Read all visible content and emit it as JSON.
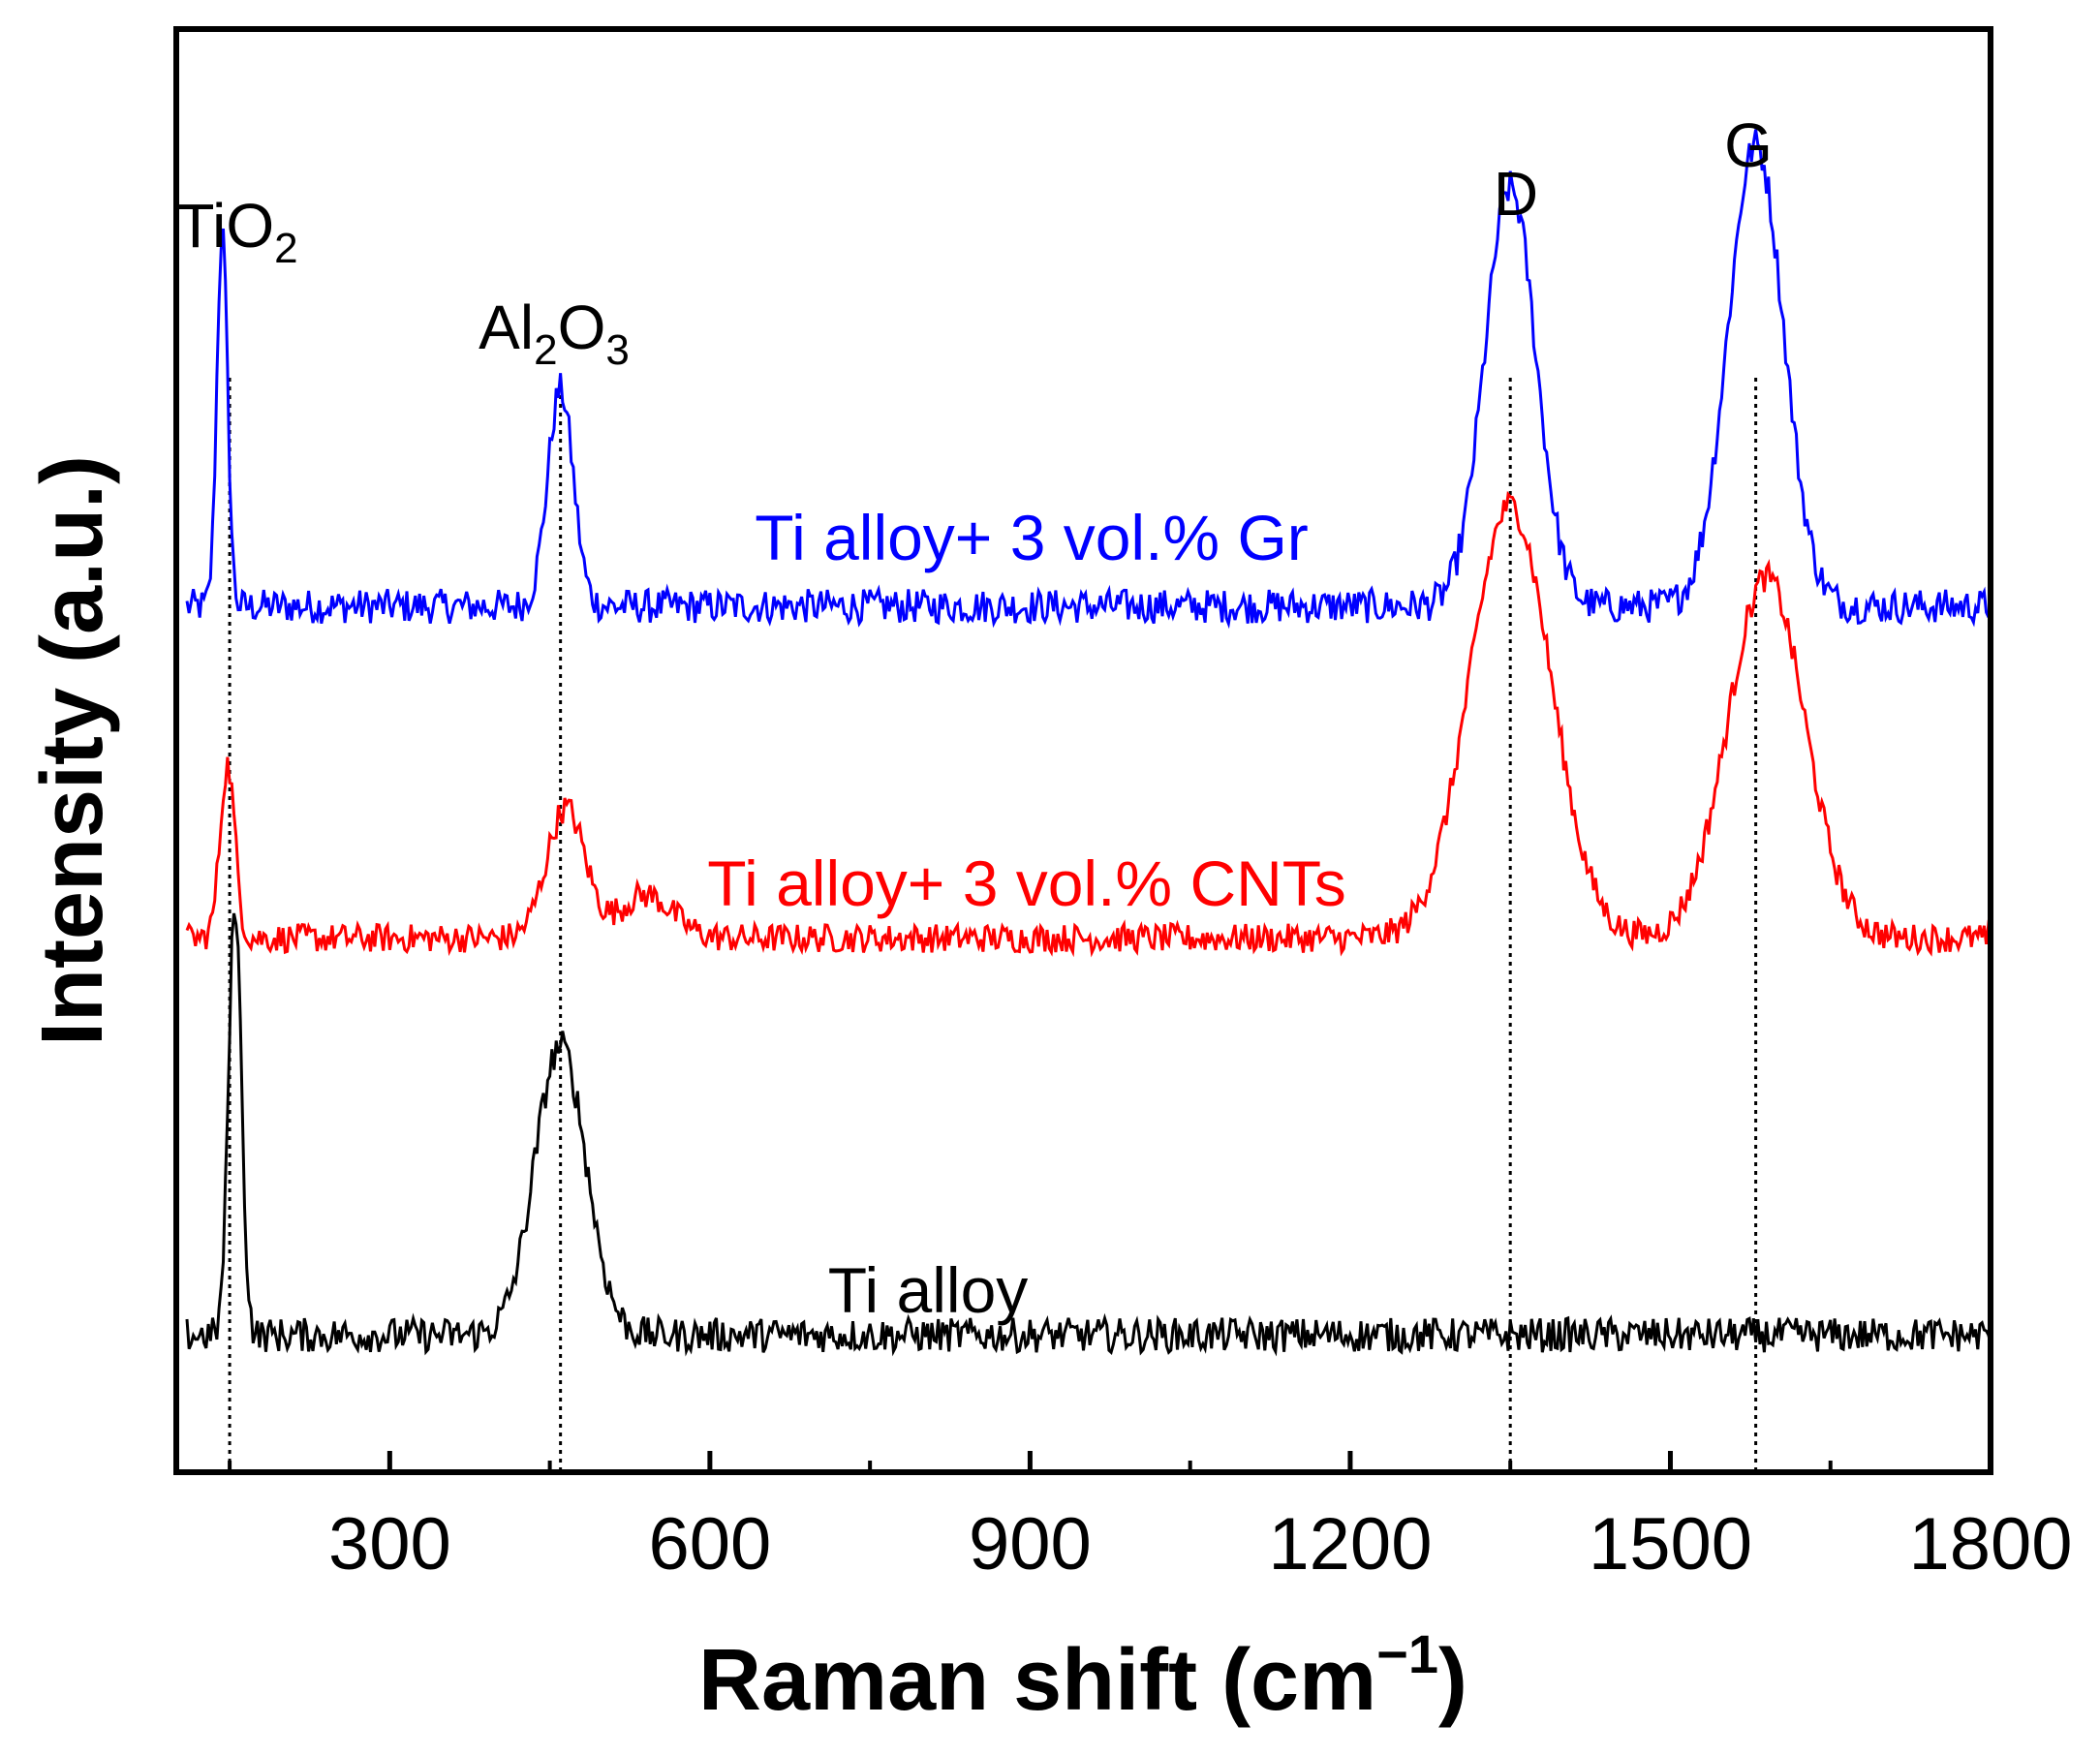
{
  "chart_data": {
    "type": "line",
    "title": "",
    "xlabel": "Raman shift (cm",
    "xlabel_superscript": "−1",
    "xlabel_close": ")",
    "ylabel": "Intensity (a.u.)",
    "xlim": [
      100,
      1800
    ],
    "ylim": [
      0,
      10
    ],
    "xticks": [
      300,
      600,
      900,
      1200,
      1500,
      1800
    ],
    "minor_xticks": [
      150,
      450,
      750,
      1050,
      1350,
      1650
    ],
    "yticks_shown": false,
    "grid": false,
    "series": [
      {
        "name": "Ti alloy+ 3 vol.% Gr",
        "color": "#0000ff",
        "baseline": 6.0,
        "noise": 0.12,
        "peaks": [
          {
            "x": 143,
            "height": 2.6,
            "width": 5
          },
          {
            "x": 460,
            "height": 1.5,
            "width": 12
          },
          {
            "x": 1350,
            "height": 2.9,
            "width": 24
          },
          {
            "x": 1580,
            "height": 3.2,
            "width": 26
          }
        ]
      },
      {
        "name": "Ti alloy+ 3 vol.% CNTs",
        "color": "#ff0000",
        "baseline": 3.7,
        "noise": 0.1,
        "peaks": [
          {
            "x": 148,
            "height": 1.2,
            "width": 7
          },
          {
            "x": 465,
            "height": 0.9,
            "width": 18
          },
          {
            "x": 540,
            "height": 0.3,
            "width": 25
          },
          {
            "x": 1350,
            "height": 3.0,
            "width": 38
          },
          {
            "x": 1590,
            "height": 2.5,
            "width": 36
          }
        ]
      },
      {
        "name": "Ti alloy",
        "color": "#000000",
        "baseline": 0.95,
        "noise": 0.12,
        "peaks": [
          {
            "x": 155,
            "height": 3.0,
            "width": 6
          },
          {
            "x": 460,
            "height": 2.0,
            "width": 24
          }
        ]
      }
    ],
    "reference_lines": [
      {
        "x": 150,
        "label": "TiO",
        "sub": "2"
      },
      {
        "x": 460,
        "label": "Al",
        "sub": "2",
        "label2": "O",
        "sub2": "3"
      },
      {
        "x": 1350,
        "label": "D"
      },
      {
        "x": 1580,
        "label": "G"
      }
    ]
  }
}
